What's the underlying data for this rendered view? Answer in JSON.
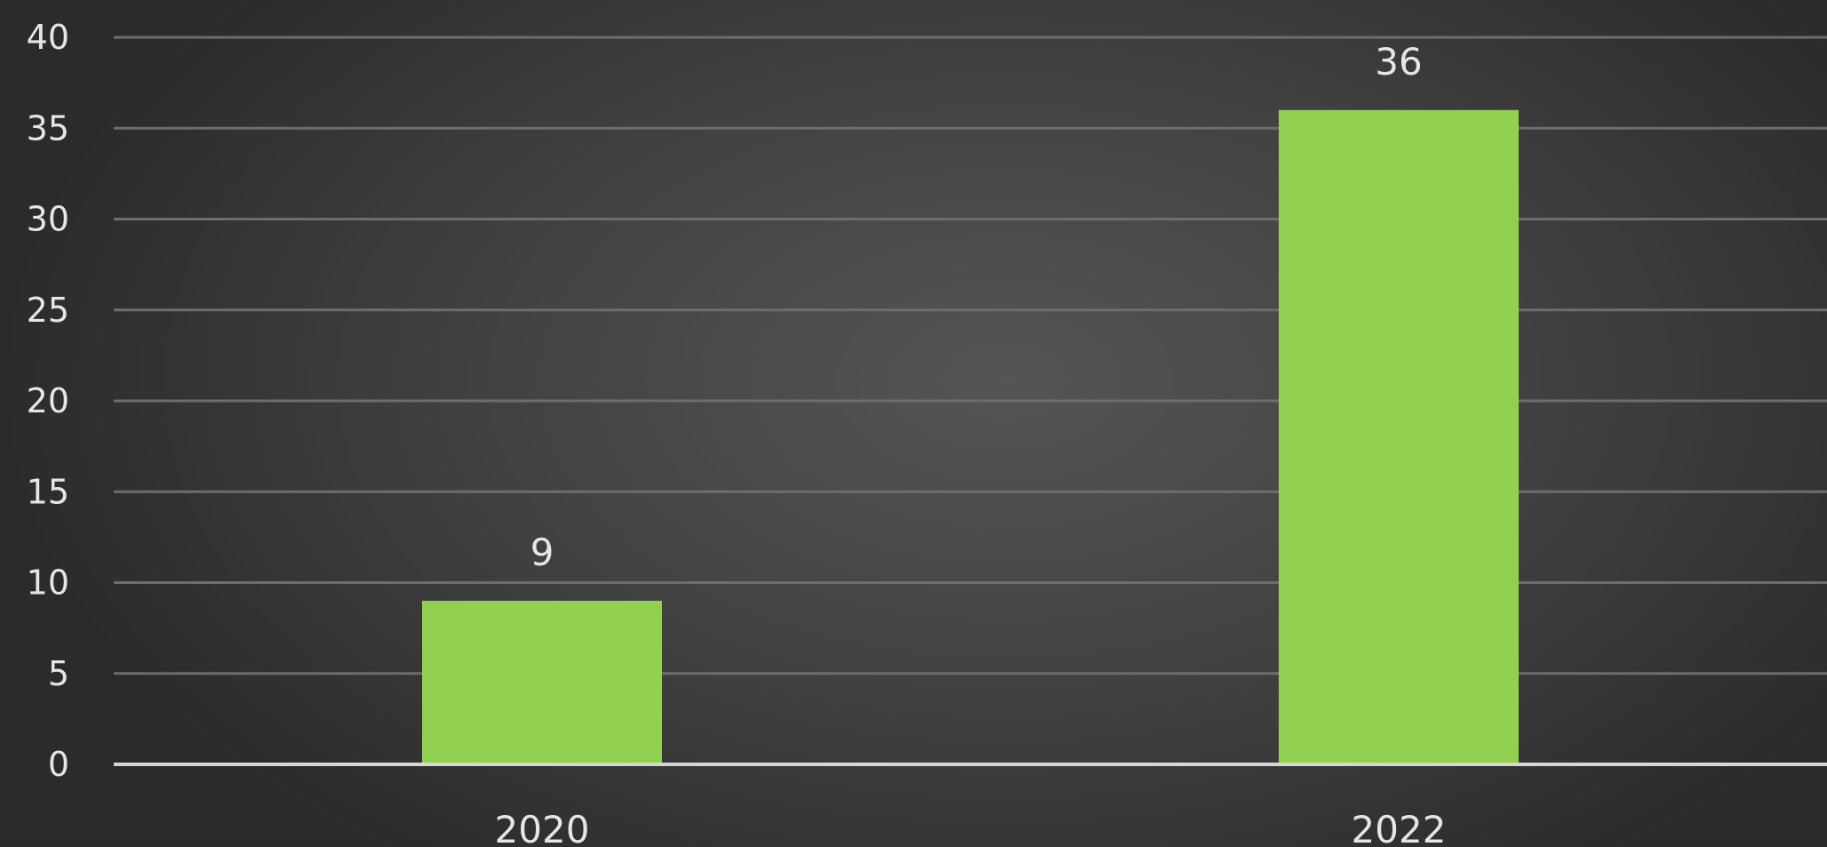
{
  "chart_data": {
    "type": "bar",
    "categories": [
      "2020",
      "2022"
    ],
    "values": [
      9,
      36
    ],
    "ylim": [
      0,
      40
    ],
    "yticks": [
      0,
      5,
      10,
      15,
      20,
      25,
      30,
      35,
      40
    ],
    "data_labels": true,
    "grid": true,
    "colors": {
      "bar": "#92d050",
      "background": "#3a3a3a",
      "text": "#e6e6e6"
    }
  }
}
